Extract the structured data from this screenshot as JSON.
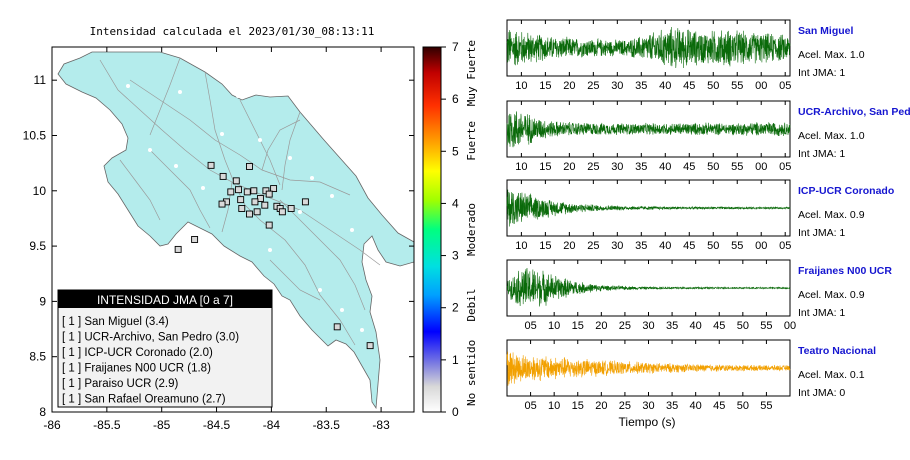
{
  "map": {
    "title": "Intensidad calculada el 2023/01/30_08:13:11",
    "x_ticks": [
      "-86",
      "-85.5",
      "-85",
      "-84.5",
      "-84",
      "-83.5",
      "-83"
    ],
    "y_ticks": [
      "11",
      "10.5",
      "10",
      "9.5",
      "9",
      "8.5",
      "8"
    ],
    "xlim": [
      -86,
      -82.7
    ],
    "ylim": [
      8,
      11.3
    ],
    "land_color": "#b4ecec",
    "stations": [
      {
        "lon": -84.85,
        "lat": 9.47
      },
      {
        "lon": -84.7,
        "lat": 9.56
      },
      {
        "lon": -84.55,
        "lat": 10.23
      },
      {
        "lon": -84.44,
        "lat": 10.13
      },
      {
        "lon": -84.2,
        "lat": 10.22
      },
      {
        "lon": -84.32,
        "lat": 10.09
      },
      {
        "lon": -84.16,
        "lat": 10.0
      },
      {
        "lon": -84.3,
        "lat": 10.01
      },
      {
        "lon": -84.37,
        "lat": 9.99
      },
      {
        "lon": -84.22,
        "lat": 9.99
      },
      {
        "lon": -84.05,
        "lat": 10.0
      },
      {
        "lon": -83.98,
        "lat": 10.02
      },
      {
        "lon": -84.02,
        "lat": 9.97
      },
      {
        "lon": -84.1,
        "lat": 9.93
      },
      {
        "lon": -84.15,
        "lat": 9.9
      },
      {
        "lon": -84.28,
        "lat": 9.92
      },
      {
        "lon": -84.41,
        "lat": 9.9
      },
      {
        "lon": -84.45,
        "lat": 9.88
      },
      {
        "lon": -84.13,
        "lat": 9.81
      },
      {
        "lon": -84.2,
        "lat": 9.79
      },
      {
        "lon": -84.27,
        "lat": 9.84
      },
      {
        "lon": -84.06,
        "lat": 9.87
      },
      {
        "lon": -83.95,
        "lat": 9.86
      },
      {
        "lon": -83.92,
        "lat": 9.84
      },
      {
        "lon": -83.9,
        "lat": 9.81
      },
      {
        "lon": -83.82,
        "lat": 9.84
      },
      {
        "lon": -83.69,
        "lat": 9.9
      },
      {
        "lon": -84.02,
        "lat": 9.69
      },
      {
        "lon": -83.4,
        "lat": 8.77
      },
      {
        "lon": -83.1,
        "lat": 8.6
      }
    ],
    "legend": {
      "header": "INTENSIDAD JMA [0 a 7]",
      "items": [
        "[ 1 ]  San Miguel (3.4)",
        "[ 1 ]  UCR-Archivo, San Pedro (3.0)",
        "[ 1 ]  ICP-UCR Coronado (2.0)",
        "[ 1 ]  Fraijanes N00 UCR (1.8)",
        "[ 1 ]  Paraiso UCR (2.9)",
        "[ 1 ]  San Rafael Oreamuno (2.7)"
      ]
    }
  },
  "colorbar": {
    "ticks": [
      "7",
      "6",
      "5",
      "4",
      "3",
      "2",
      "1",
      "0"
    ],
    "min": 0,
    "max": 7,
    "labels": [
      "Muy Fuerte",
      "Fuerte",
      "Moderado",
      "Debil",
      "No sentido"
    ],
    "label_values": [
      6.5,
      5.2,
      3.5,
      2.05,
      0.75
    ]
  },
  "chart_data": [
    {
      "type": "line",
      "name": "San Miguel",
      "accel_label": "Acel. Max. 1.0",
      "jma_label": "Int JMA: 1",
      "color": "#0a6a0a",
      "x_ticks": [
        "10",
        "15",
        "20",
        "25",
        "30",
        "35",
        "40",
        "45",
        "50",
        "55",
        "00",
        "05"
      ],
      "x_tick_seconds": [
        10,
        15,
        20,
        25,
        30,
        35,
        40,
        45,
        50,
        55,
        60,
        65
      ],
      "xlim": [
        7,
        66
      ],
      "amplitude": [
        0.9,
        0.75,
        0.6,
        0.5,
        0.45,
        0.4,
        0.38,
        0.35,
        0.35,
        0.5,
        0.7,
        0.9,
        0.85,
        0.7,
        0.75,
        0.8,
        0.7,
        0.65,
        0.6,
        0.55
      ]
    },
    {
      "type": "line",
      "name": "UCR-Archivo, San Pedro",
      "accel_label": "Acel. Max. 1.0",
      "jma_label": "Int JMA: 1",
      "color": "#0a6a0a",
      "x_ticks": [
        "10",
        "15",
        "20",
        "25",
        "30",
        "35",
        "40",
        "45",
        "50",
        "55",
        "00",
        "05"
      ],
      "x_tick_seconds": [
        10,
        15,
        20,
        25,
        30,
        35,
        40,
        45,
        50,
        55,
        60,
        65
      ],
      "xlim": [
        7,
        66
      ],
      "amplitude": [
        1.0,
        0.8,
        0.5,
        0.35,
        0.3,
        0.28,
        0.26,
        0.25,
        0.25,
        0.24,
        0.25,
        0.25,
        0.26,
        0.27,
        0.25,
        0.25,
        0.27,
        0.3,
        0.3,
        0.28
      ]
    },
    {
      "type": "line",
      "name": "ICP-UCR Coronado",
      "accel_label": "Acel. Max. 0.9",
      "jma_label": "Int JMA: 1",
      "color": "#0a6a0a",
      "x_ticks": [
        "10",
        "15",
        "20",
        "25",
        "30",
        "35",
        "40",
        "45",
        "50",
        "55",
        "00",
        "05"
      ],
      "x_tick_seconds": [
        10,
        15,
        20,
        25,
        30,
        35,
        40,
        45,
        50,
        55,
        60,
        65
      ],
      "xlim": [
        7,
        66
      ],
      "amplitude": [
        0.95,
        0.7,
        0.5,
        0.35,
        0.25,
        0.18,
        0.14,
        0.11,
        0.09,
        0.08,
        0.07,
        0.06,
        0.06,
        0.05,
        0.05,
        0.05,
        0.04,
        0.04,
        0.04,
        0.04
      ]
    },
    {
      "type": "line",
      "name": "Fraijanes N00 UCR",
      "accel_label": "Acel. Max. 0.9",
      "jma_label": "Int JMA: 1",
      "color": "#0a6a0a",
      "x_ticks": [
        "05",
        "10",
        "15",
        "20",
        "25",
        "30",
        "35",
        "40",
        "45",
        "50",
        "55",
        "00"
      ],
      "x_tick_seconds": [
        5,
        10,
        15,
        20,
        25,
        30,
        35,
        40,
        45,
        50,
        55,
        60
      ],
      "xlim": [
        0,
        60
      ],
      "amplitude": [
        0.3,
        0.9,
        0.85,
        0.6,
        0.4,
        0.25,
        0.15,
        0.1,
        0.08,
        0.06,
        0.05,
        0.05,
        0.04,
        0.04,
        0.04,
        0.03,
        0.03,
        0.03,
        0.03,
        0.03
      ]
    },
    {
      "type": "line",
      "name": "Teatro Nacional",
      "accel_label": "Acel. Max. 0.1",
      "jma_label": "Int JMA: 0",
      "color": "#f2a000",
      "x_ticks": [
        "05",
        "10",
        "15",
        "20",
        "25",
        "30",
        "35",
        "40",
        "45",
        "50",
        "55"
      ],
      "x_tick_seconds": [
        5,
        10,
        15,
        20,
        25,
        30,
        35,
        40,
        45,
        50,
        55
      ],
      "xlim": [
        0,
        60
      ],
      "amplitude": [
        0.8,
        0.6,
        0.55,
        0.5,
        0.45,
        0.4,
        0.35,
        0.3,
        0.28,
        0.25,
        0.22,
        0.2,
        0.18,
        0.16,
        0.15,
        0.14,
        0.13,
        0.12,
        0.12,
        0.11
      ]
    }
  ],
  "waveform_xlabel": "Tiempo (s)"
}
